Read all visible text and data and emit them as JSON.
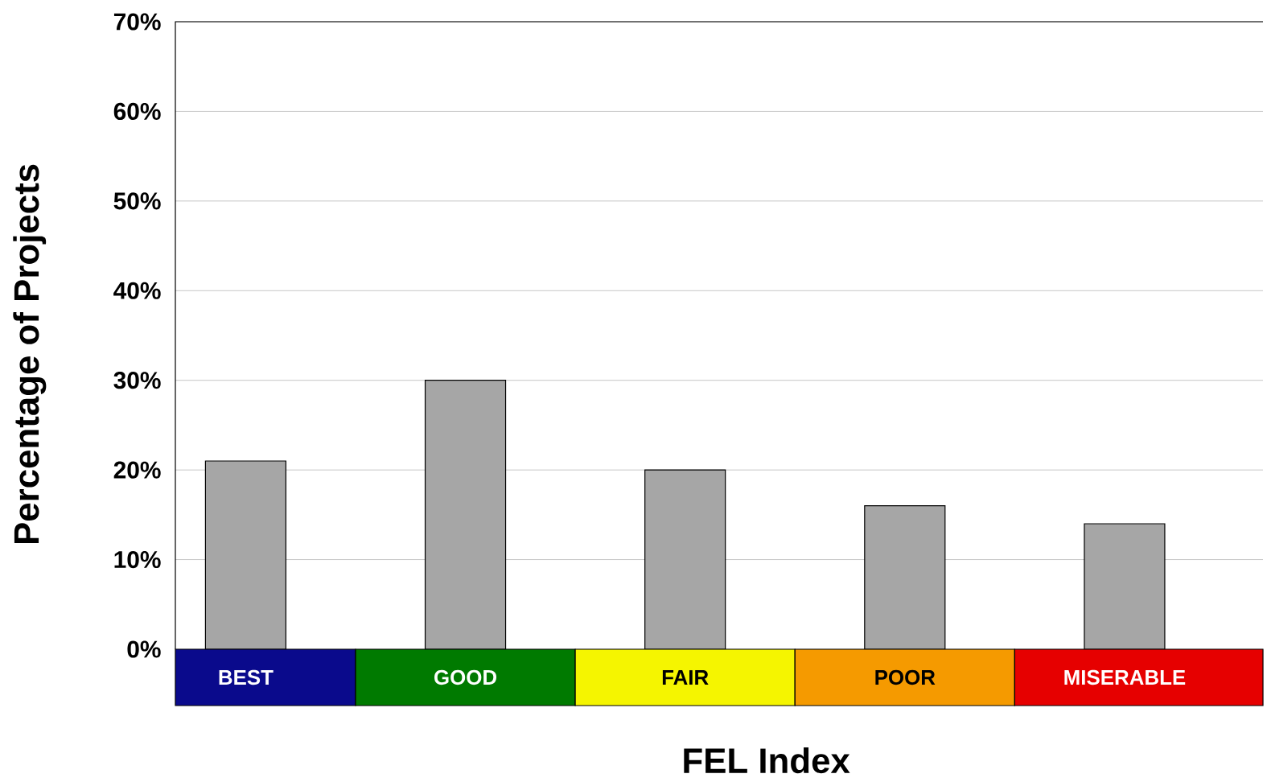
{
  "chart_data": {
    "type": "bar",
    "xlabel": "FEL Index",
    "ylabel": "Percentage of Projects",
    "categories": [
      "BEST",
      "GOOD",
      "FAIR",
      "POOR",
      "MISERABLE"
    ],
    "values": [
      21,
      30,
      20,
      16,
      14
    ],
    "color": "#a6a6a6",
    "ylim": [
      0,
      70
    ],
    "yticks": [
      {
        "value": 0,
        "label": "0%"
      },
      {
        "value": 10,
        "label": "10%"
      },
      {
        "value": 20,
        "label": "20%"
      },
      {
        "value": 30,
        "label": "30%"
      },
      {
        "value": 40,
        "label": "40%"
      },
      {
        "value": 50,
        "label": "50%"
      },
      {
        "value": 60,
        "label": "60%"
      },
      {
        "value": 70,
        "label": "70%"
      }
    ],
    "grid": "y"
  }
}
